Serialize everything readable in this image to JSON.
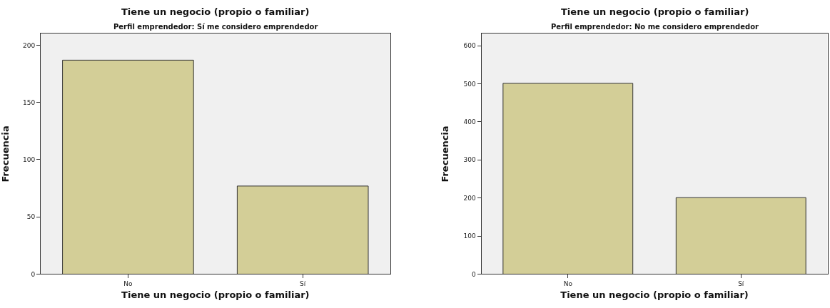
{
  "chart_data": [
    {
      "type": "bar",
      "title": "Tiene un negocio (propio o familiar)",
      "subtitle": "Perfil emprendedor: Sí me considero emprendedor",
      "xlabel": "Tiene un negocio (propio o familiar)",
      "ylabel": "Frecuencia",
      "categories": [
        "No",
        "Sí"
      ],
      "values": [
        187,
        77
      ],
      "color": "#d3ce97",
      "ylim": [
        0,
        210
      ],
      "yticks": [
        0,
        50,
        100,
        150,
        200
      ],
      "grid": false
    },
    {
      "type": "bar",
      "title": "Tiene un negocio (propio o familiar)",
      "subtitle": "Perfil emprendedor: No me considero emprendedor",
      "xlabel": "Tiene un negocio (propio o familiar)",
      "ylabel": "Frecuencia",
      "categories": [
        "No",
        "Sí"
      ],
      "values": [
        501,
        201
      ],
      "color": "#d3ce97",
      "ylim": [
        0,
        631
      ],
      "yticks": [
        0,
        100,
        200,
        300,
        400,
        500,
        600
      ],
      "grid": false
    }
  ]
}
